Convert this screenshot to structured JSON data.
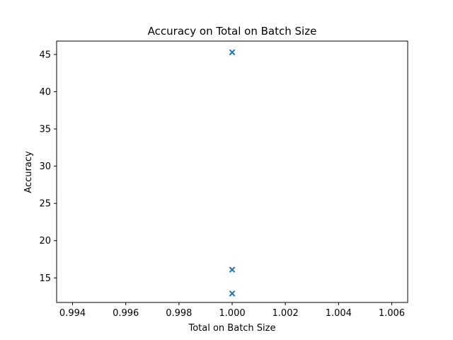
{
  "chart_data": {
    "type": "scatter",
    "title": "Accuracy on Total on Batch Size",
    "xlabel": "Total on Batch Size",
    "ylabel": "Accuracy",
    "xlim": [
      0.9934,
      1.0066
    ],
    "ylim": [
      11.7,
      46.8
    ],
    "xticks": [
      0.994,
      0.996,
      0.998,
      1.0,
      1.002,
      1.004,
      1.006
    ],
    "xtick_labels": [
      "0.994",
      "0.996",
      "0.998",
      "1.000",
      "1.002",
      "1.004",
      "1.006"
    ],
    "yticks": [
      15,
      20,
      25,
      30,
      35,
      40,
      45
    ],
    "ytick_labels": [
      "15",
      "20",
      "25",
      "30",
      "35",
      "40",
      "45"
    ],
    "grid": false,
    "marker": "x",
    "color": "#1f77b4",
    "series": [
      {
        "x": [
          1.0,
          1.0,
          1.0
        ],
        "y": [
          45.3,
          16.1,
          12.9
        ]
      }
    ]
  }
}
